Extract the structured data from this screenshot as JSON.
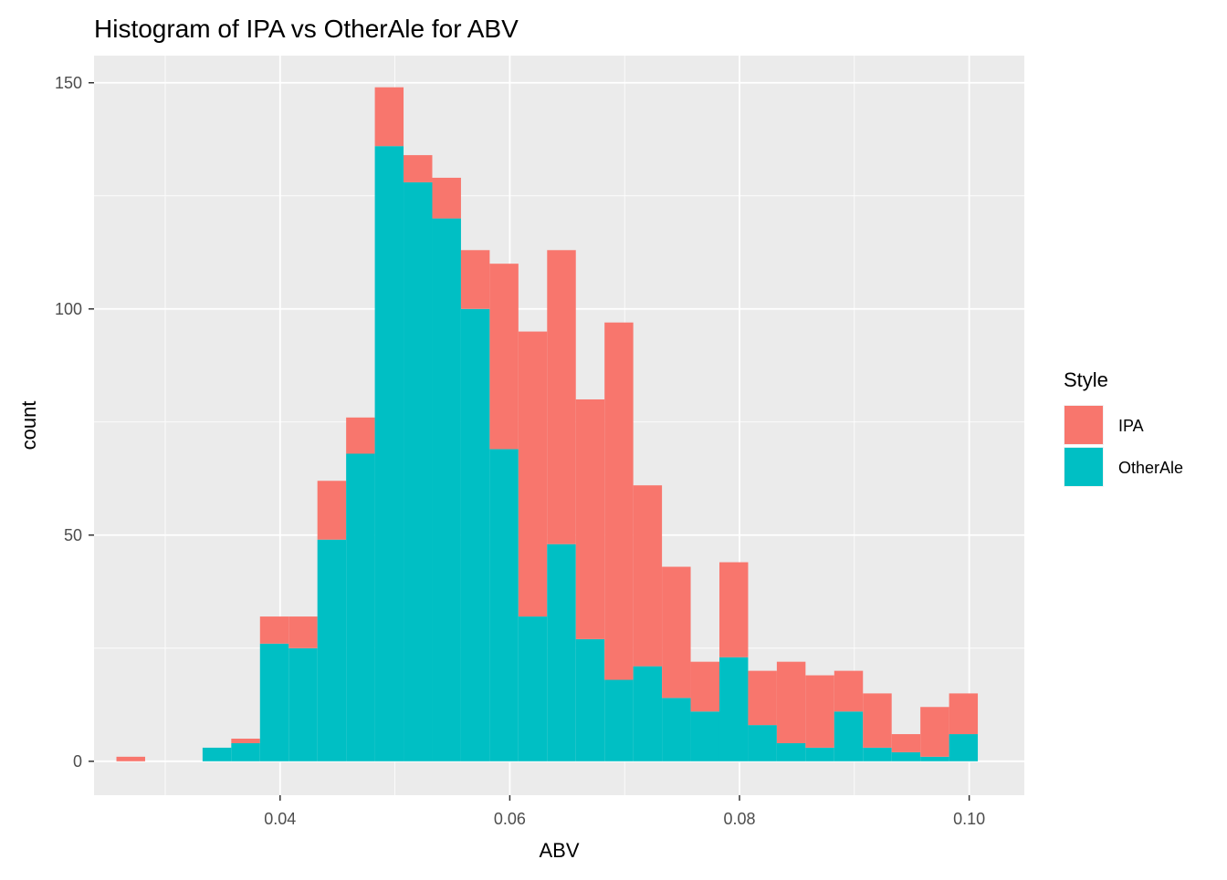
{
  "chart_data": {
    "type": "bar",
    "subtype": "stacked-histogram",
    "title": "Histogram of IPA vs OtherAle for ABV",
    "xlabel": "ABV",
    "ylabel": "count",
    "xlim": [
      0.0238,
      0.1048
    ],
    "ylim": [
      -7.5,
      156
    ],
    "x_ticks": [
      {
        "value": 0.04,
        "label": "0.04"
      },
      {
        "value": 0.06,
        "label": "0.06"
      },
      {
        "value": 0.08,
        "label": "0.08"
      },
      {
        "value": 0.1,
        "label": "0.10"
      }
    ],
    "y_ticks": [
      {
        "value": 0,
        "label": "0"
      },
      {
        "value": 50,
        "label": "50"
      },
      {
        "value": 100,
        "label": "100"
      },
      {
        "value": 150,
        "label": "150"
      }
    ],
    "grid": true,
    "legend": {
      "title": "Style",
      "position": "right"
    },
    "bin_centers": [
      0.027,
      0.0295,
      0.032,
      0.0345,
      0.037,
      0.0395,
      0.042,
      0.0445,
      0.047,
      0.0495,
      0.052,
      0.0545,
      0.057,
      0.0595,
      0.062,
      0.0645,
      0.067,
      0.0695,
      0.072,
      0.0745,
      0.077,
      0.0795,
      0.082,
      0.0845,
      0.087,
      0.0895,
      0.092,
      0.0945,
      0.097,
      0.0995
    ],
    "bin_width": 0.0025,
    "series": [
      {
        "name": "IPA",
        "color": "#F8766D",
        "values": [
          1,
          0,
          0,
          0,
          1,
          6,
          7,
          13,
          8,
          13,
          6,
          9,
          13,
          41,
          63,
          65,
          53,
          79,
          40,
          29,
          11,
          21,
          12,
          18,
          16,
          9,
          12,
          4,
          11,
          9
        ]
      },
      {
        "name": "OtherAle",
        "color": "#00BFC4",
        "values": [
          0,
          0,
          0,
          3,
          4,
          26,
          25,
          49,
          68,
          136,
          128,
          120,
          100,
          69,
          32,
          48,
          27,
          18,
          21,
          14,
          11,
          23,
          8,
          4,
          3,
          11,
          3,
          2,
          1,
          6
        ]
      }
    ]
  }
}
